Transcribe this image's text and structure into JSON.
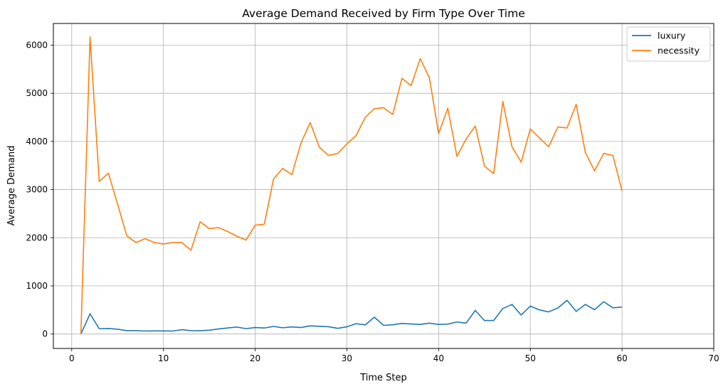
{
  "chart_data": {
    "type": "line",
    "title": "Average Demand Received by Firm Type Over Time",
    "xlabel": "Time Step",
    "ylabel": "Average Demand",
    "xlim": [
      -2,
      70
    ],
    "ylim": [
      -300,
      6450
    ],
    "xticks": [
      0,
      10,
      20,
      30,
      40,
      50,
      60,
      70
    ],
    "yticks": [
      0,
      1000,
      2000,
      3000,
      4000,
      5000,
      6000
    ],
    "grid": true,
    "legend_position": "top-right",
    "x": [
      1,
      2,
      3,
      4,
      5,
      6,
      7,
      8,
      9,
      10,
      11,
      12,
      13,
      14,
      15,
      16,
      17,
      18,
      19,
      20,
      21,
      22,
      23,
      24,
      25,
      26,
      27,
      28,
      29,
      30,
      31,
      32,
      33,
      34,
      35,
      36,
      37,
      38,
      39,
      40,
      41,
      42,
      43,
      44,
      45,
      46,
      47,
      48,
      49,
      50,
      51,
      52,
      53,
      54,
      55,
      56,
      57,
      58,
      59,
      60
    ],
    "series": [
      {
        "name": "luxury",
        "color": "#1f77b4",
        "values": [
          0,
          420,
          110,
          115,
          100,
          70,
          70,
          62,
          65,
          65,
          62,
          90,
          70,
          68,
          80,
          105,
          125,
          145,
          112,
          135,
          125,
          158,
          130,
          148,
          135,
          170,
          160,
          152,
          118,
          150,
          215,
          190,
          350,
          180,
          192,
          220,
          208,
          200,
          225,
          200,
          205,
          250,
          225,
          490,
          280,
          280,
          530,
          615,
          395,
          580,
          500,
          460,
          540,
          700,
          470,
          615,
          505,
          670,
          545,
          560
        ]
      },
      {
        "name": "necessity",
        "color": "#ff7f0e",
        "values": [
          0,
          6170,
          3170,
          3340,
          2700,
          2040,
          1900,
          1980,
          1900,
          1870,
          1900,
          1900,
          1740,
          2330,
          2190,
          2210,
          2130,
          2030,
          1950,
          2260,
          2280,
          3220,
          3440,
          3310,
          3970,
          4390,
          3880,
          3710,
          3750,
          3950,
          4120,
          4500,
          4680,
          4700,
          4560,
          5310,
          5160,
          5720,
          5320,
          4160,
          4690,
          3690,
          4050,
          4320,
          3490,
          3330,
          4830,
          3890,
          3570,
          4260,
          4070,
          3890,
          4300,
          4280,
          4770,
          3770,
          3390,
          3750,
          3710,
          2970
        ]
      }
    ]
  }
}
